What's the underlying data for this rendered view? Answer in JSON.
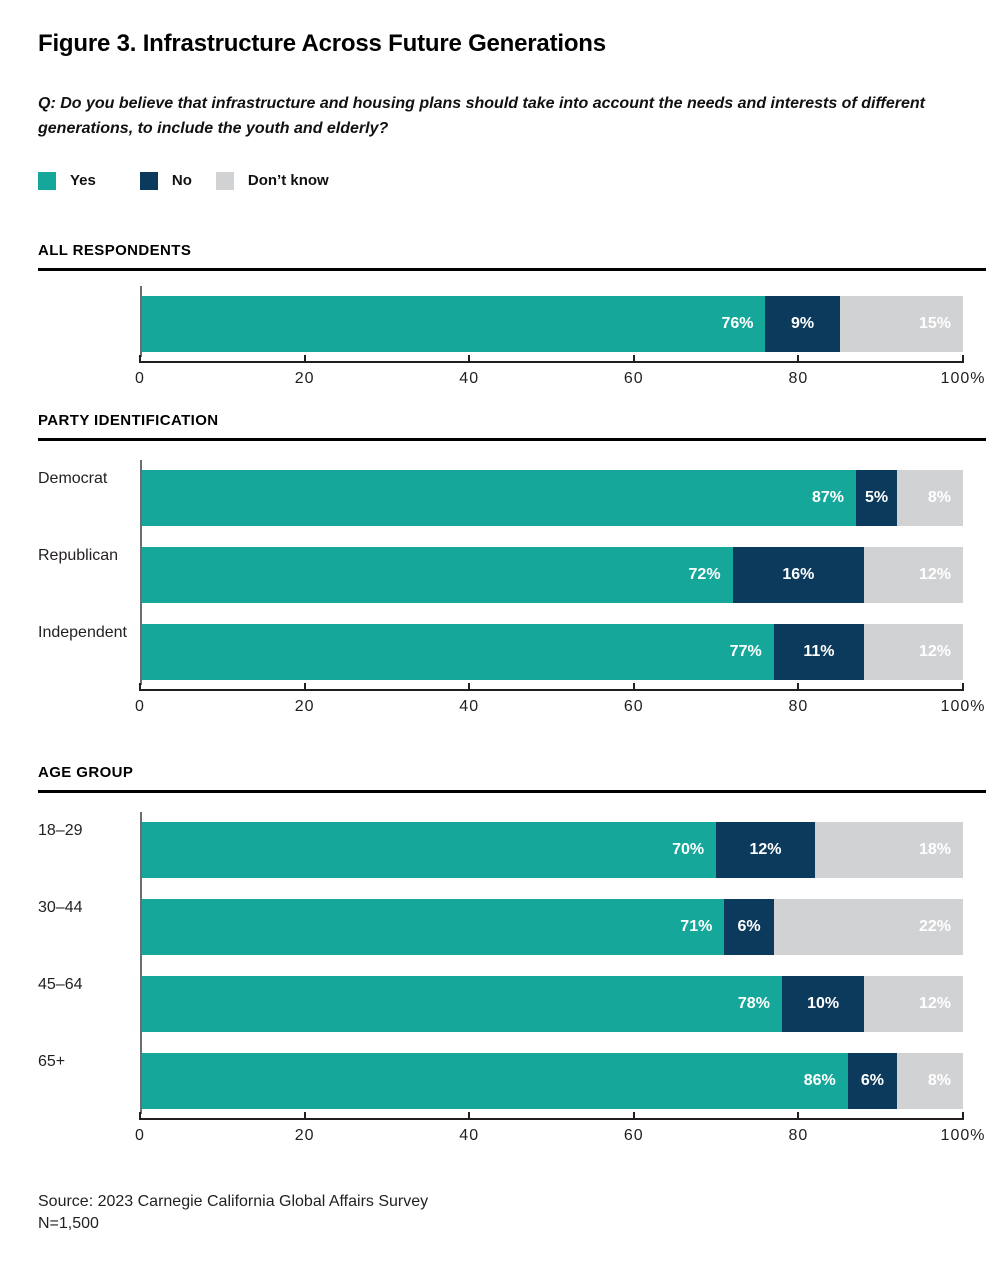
{
  "title": "Figure 3. Infrastructure Across Future Generations",
  "question": "Q: Do you believe that infrastructure and housing plans should take into account the needs and interests of different generations, to include the youth and elderly?",
  "legend": {
    "items": [
      {
        "label": "Yes",
        "color": "#16A79B"
      },
      {
        "label": "No",
        "color": "#0C3A5D"
      },
      {
        "label": "Don’t know",
        "color": "#D1D2D4"
      }
    ]
  },
  "colors": {
    "yes": "#16A79B",
    "no": "#0C3A5D",
    "dont_know": "#D1D2D4",
    "axis": "#231F20",
    "spine": "#6D6E71",
    "rule": "#000000"
  },
  "footer": {
    "source": "Source: 2023 Carnegie California Global Affairs Survey",
    "sample": "N=1,500"
  },
  "chart_data": [
    {
      "type": "bar",
      "stacked": true,
      "orientation": "horizontal",
      "section": "ALL RESPONDENTS",
      "categories": [
        ""
      ],
      "series": [
        {
          "name": "Yes",
          "values": [
            76
          ]
        },
        {
          "name": "No",
          "values": [
            9
          ]
        },
        {
          "name": "Don’t know",
          "values": [
            15
          ]
        }
      ],
      "xlim": [
        0,
        100
      ],
      "grid": false,
      "ticks": [
        {
          "label": "0",
          "pos": 0
        },
        {
          "label": "20",
          "pos": 20
        },
        {
          "label": "40",
          "pos": 40
        },
        {
          "label": "60",
          "pos": 60
        },
        {
          "label": "80",
          "pos": 80
        },
        {
          "label": "100%",
          "pos": 100
        }
      ]
    },
    {
      "type": "bar",
      "stacked": true,
      "orientation": "horizontal",
      "section": "PARTY IDENTIFICATION",
      "categories": [
        "Democrat",
        "Republican",
        "Independent"
      ],
      "series": [
        {
          "name": "Yes",
          "values": [
            87,
            72,
            77
          ]
        },
        {
          "name": "No",
          "values": [
            5,
            16,
            11
          ]
        },
        {
          "name": "Don’t know",
          "values": [
            8,
            12,
            12
          ]
        }
      ],
      "xlim": [
        0,
        100
      ],
      "grid": false,
      "ticks": [
        {
          "label": "0",
          "pos": 0
        },
        {
          "label": "20",
          "pos": 20
        },
        {
          "label": "40",
          "pos": 40
        },
        {
          "label": "60",
          "pos": 60
        },
        {
          "label": "80",
          "pos": 80
        },
        {
          "label": "100%",
          "pos": 100
        }
      ]
    },
    {
      "type": "bar",
      "stacked": true,
      "orientation": "horizontal",
      "section": "AGE GROUP",
      "categories": [
        "18–29",
        "30–44",
        "45–64",
        "65+"
      ],
      "series": [
        {
          "name": "Yes",
          "values": [
            70,
            71,
            78,
            86
          ]
        },
        {
          "name": "No",
          "values": [
            12,
            6,
            10,
            6
          ]
        },
        {
          "name": "Don’t know",
          "values": [
            18,
            22,
            12,
            8
          ]
        }
      ],
      "xlim": [
        0,
        100
      ],
      "grid": false,
      "ticks": [
        {
          "label": "0",
          "pos": 0
        },
        {
          "label": "20",
          "pos": 20
        },
        {
          "label": "40",
          "pos": 40
        },
        {
          "label": "60",
          "pos": 60
        },
        {
          "label": "80",
          "pos": 80
        },
        {
          "label": "100%",
          "pos": 100
        }
      ]
    }
  ]
}
